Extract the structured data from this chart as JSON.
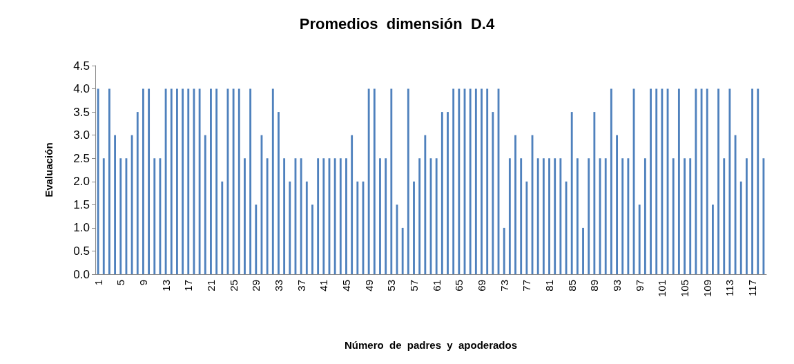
{
  "chart_data": {
    "type": "bar",
    "title": "Promedios  dimensión  D.4",
    "xlabel": "Número  de  padres  y  apoderados",
    "ylabel": "Evaluación",
    "color": "#4f81bd",
    "categories": [
      "1",
      null,
      null,
      null,
      "5",
      null,
      null,
      null,
      "9",
      null,
      null,
      null,
      "13",
      null,
      null,
      null,
      "17",
      null,
      null,
      null,
      "21",
      null,
      null,
      null,
      "25",
      null,
      null,
      null,
      "29",
      null,
      null,
      null,
      "33",
      null,
      null,
      null,
      "37",
      null,
      null,
      null,
      "41",
      null,
      null,
      null,
      "45",
      null,
      null,
      null,
      "49",
      null,
      null,
      null,
      "53",
      null,
      null,
      null,
      "57",
      null,
      null,
      null,
      "61",
      null,
      null,
      null,
      "65",
      null,
      null,
      null,
      "69",
      null,
      null,
      null,
      "73",
      null,
      null,
      null,
      "77",
      null,
      null,
      null,
      "81",
      null,
      null,
      null,
      "85",
      null,
      null,
      null,
      "89",
      null,
      null,
      null,
      "93",
      null,
      null,
      null,
      "97",
      null,
      null,
      null,
      "101",
      null,
      null,
      null,
      "105",
      null,
      null,
      null,
      "109",
      null,
      null,
      null,
      "113",
      null,
      null,
      null,
      "117",
      null,
      null
    ],
    "values": [
      4.0,
      2.5,
      4.0,
      3.0,
      2.5,
      2.5,
      3.0,
      3.5,
      4.0,
      4.0,
      2.5,
      2.5,
      4.0,
      4.0,
      4.0,
      4.0,
      4.0,
      4.0,
      4.0,
      3.0,
      4.0,
      4.0,
      2.0,
      4.0,
      4.0,
      4.0,
      2.5,
      4.0,
      1.5,
      3.0,
      2.5,
      4.0,
      3.5,
      2.5,
      2.0,
      2.5,
      2.5,
      2.0,
      1.5,
      2.5,
      2.5,
      2.5,
      2.5,
      2.5,
      2.5,
      3.0,
      2.0,
      2.0,
      4.0,
      4.0,
      2.5,
      2.5,
      4.0,
      1.5,
      1.0,
      4.0,
      2.0,
      2.5,
      3.0,
      2.5,
      2.5,
      3.5,
      3.5,
      4.0,
      4.0,
      4.0,
      4.0,
      4.0,
      4.0,
      4.0,
      3.5,
      4.0,
      1.0,
      2.5,
      3.0,
      2.5,
      2.0,
      3.0,
      2.5,
      2.5,
      2.5,
      2.5,
      2.5,
      2.0,
      3.5,
      2.5,
      1.0,
      2.5,
      3.5,
      2.5,
      2.5,
      4.0,
      3.0,
      2.5,
      2.5,
      4.0,
      1.5,
      2.5,
      4.0,
      4.0,
      4.0,
      4.0,
      2.5,
      4.0,
      2.5,
      2.5,
      4.0,
      4.0,
      4.0,
      1.5,
      4.0,
      2.5,
      4.0,
      3.0,
      2.0,
      2.5,
      4.0,
      4.0,
      2.5
    ],
    "ylim": [
      0,
      4.5
    ],
    "yticks": [
      {
        "value": 0,
        "label": "0.0"
      },
      {
        "value": 0.5,
        "label": "0.5"
      },
      {
        "value": 1,
        "label": "1.0"
      },
      {
        "value": 1.5,
        "label": "1.5"
      },
      {
        "value": 2,
        "label": "2.0"
      },
      {
        "value": 2.5,
        "label": "2.5"
      },
      {
        "value": 3,
        "label": "3.0"
      },
      {
        "value": 3.5,
        "label": "3.5"
      },
      {
        "value": 4,
        "label": "4.0"
      },
      {
        "value": 4.5,
        "label": "4.5"
      }
    ],
    "grid": false
  }
}
